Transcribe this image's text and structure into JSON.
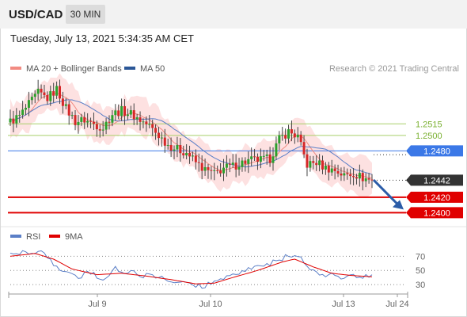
{
  "header": {
    "symbol": "USD/CAD",
    "timeframe": "30 MIN",
    "timestamp": "Tuesday, July 13, 2021 5:34:35 AM CET"
  },
  "chart_data": [
    {
      "type": "candlestick",
      "title": "USD/CAD",
      "source": "Research © 2021 Trading Central",
      "legend": [
        {
          "name": "MA 20 + Bollinger Bands",
          "color": "#f28b82"
        },
        {
          "name": "MA 50",
          "color": "#2b5797"
        }
      ],
      "x_ticks": [
        "Jul 9",
        "Jul 10",
        "Jul 13",
        "Jul 24"
      ],
      "ylim": [
        1.2385,
        1.2585
      ],
      "last_price": "1.2442",
      "colors": {
        "up": "#2ca02c",
        "down": "#d62728",
        "bands": "#fdd9d9",
        "ma20": "#f28b82",
        "ma50": "#5b7fc7",
        "support": "#e00000",
        "resistance": "#a8cf6a",
        "pivot": "#3b78e7",
        "arrow": "#2b5ca8"
      },
      "levels": [
        {
          "label": "1.2515",
          "value": 1.2515,
          "kind": "resistance"
        },
        {
          "label": "1.2500",
          "value": 1.25,
          "kind": "resistance"
        },
        {
          "label": "1.2480",
          "value": 1.248,
          "kind": "pivot"
        },
        {
          "label": "1.2442",
          "value": 1.2442,
          "kind": "last"
        },
        {
          "label": "1.2420",
          "value": 1.242,
          "kind": "support"
        },
        {
          "label": "1.2400",
          "value": 1.24,
          "kind": "support"
        }
      ],
      "ohlc_anchors": [
        [
          0,
          1.2518
        ],
        [
          3,
          1.2525
        ],
        [
          6,
          1.254
        ],
        [
          9,
          1.2555
        ],
        [
          12,
          1.2548
        ],
        [
          15,
          1.256
        ],
        [
          18,
          1.2535
        ],
        [
          21,
          1.2518
        ],
        [
          24,
          1.252
        ],
        [
          27,
          1.2515
        ],
        [
          30,
          1.251
        ],
        [
          33,
          1.2528
        ],
        [
          36,
          1.2532
        ],
        [
          39,
          1.2528
        ],
        [
          42,
          1.252
        ],
        [
          45,
          1.2512
        ],
        [
          48,
          1.25
        ],
        [
          51,
          1.2488
        ],
        [
          54,
          1.2482
        ],
        [
          57,
          1.2478
        ],
        [
          60,
          1.2465
        ],
        [
          63,
          1.2455
        ],
        [
          66,
          1.245
        ],
        [
          69,
          1.2458
        ],
        [
          72,
          1.246
        ],
        [
          75,
          1.2465
        ],
        [
          78,
          1.2468
        ],
        [
          81,
          1.2468
        ],
        [
          84,
          1.247
        ],
        [
          87,
          1.2495
        ],
        [
          90,
          1.2505
        ],
        [
          93,
          1.2498
        ],
        [
          96,
          1.2462
        ],
        [
          99,
          1.2465
        ],
        [
          102,
          1.2458
        ],
        [
          105,
          1.2455
        ],
        [
          108,
          1.2448
        ],
        [
          111,
          1.2451
        ],
        [
          114,
          1.2445
        ],
        [
          117,
          1.2442
        ]
      ],
      "forecast_target": 1.24
    },
    {
      "type": "line",
      "title": "RSI",
      "legend": [
        {
          "name": "RSI",
          "color": "#5b7fc7"
        },
        {
          "name": "9MA",
          "color": "#e00000"
        }
      ],
      "ylim": [
        20,
        85
      ],
      "y_ticks": [
        70,
        50,
        30
      ],
      "rsi_anchors": [
        [
          0,
          72
        ],
        [
          6,
          75
        ],
        [
          10,
          78
        ],
        [
          14,
          60
        ],
        [
          18,
          45
        ],
        [
          22,
          42
        ],
        [
          26,
          46
        ],
        [
          30,
          40
        ],
        [
          34,
          52
        ],
        [
          38,
          48
        ],
        [
          42,
          44
        ],
        [
          46,
          40
        ],
        [
          50,
          38
        ],
        [
          54,
          34
        ],
        [
          58,
          30
        ],
        [
          62,
          28
        ],
        [
          66,
          34
        ],
        [
          70,
          42
        ],
        [
          74,
          48
        ],
        [
          78,
          52
        ],
        [
          82,
          57
        ],
        [
          86,
          62
        ],
        [
          90,
          72
        ],
        [
          94,
          66
        ],
        [
          98,
          48
        ],
        [
          102,
          44
        ],
        [
          106,
          42
        ],
        [
          110,
          41
        ],
        [
          114,
          42
        ],
        [
          117,
          40
        ]
      ],
      "ma9_anchors": [
        [
          0,
          70
        ],
        [
          8,
          74
        ],
        [
          14,
          66
        ],
        [
          20,
          52
        ],
        [
          28,
          44
        ],
        [
          36,
          46
        ],
        [
          44,
          42
        ],
        [
          52,
          37
        ],
        [
          60,
          31
        ],
        [
          66,
          32
        ],
        [
          72,
          40
        ],
        [
          80,
          50
        ],
        [
          88,
          62
        ],
        [
          92,
          66
        ],
        [
          98,
          55
        ],
        [
          104,
          46
        ],
        [
          110,
          43
        ],
        [
          117,
          41
        ]
      ]
    }
  ]
}
